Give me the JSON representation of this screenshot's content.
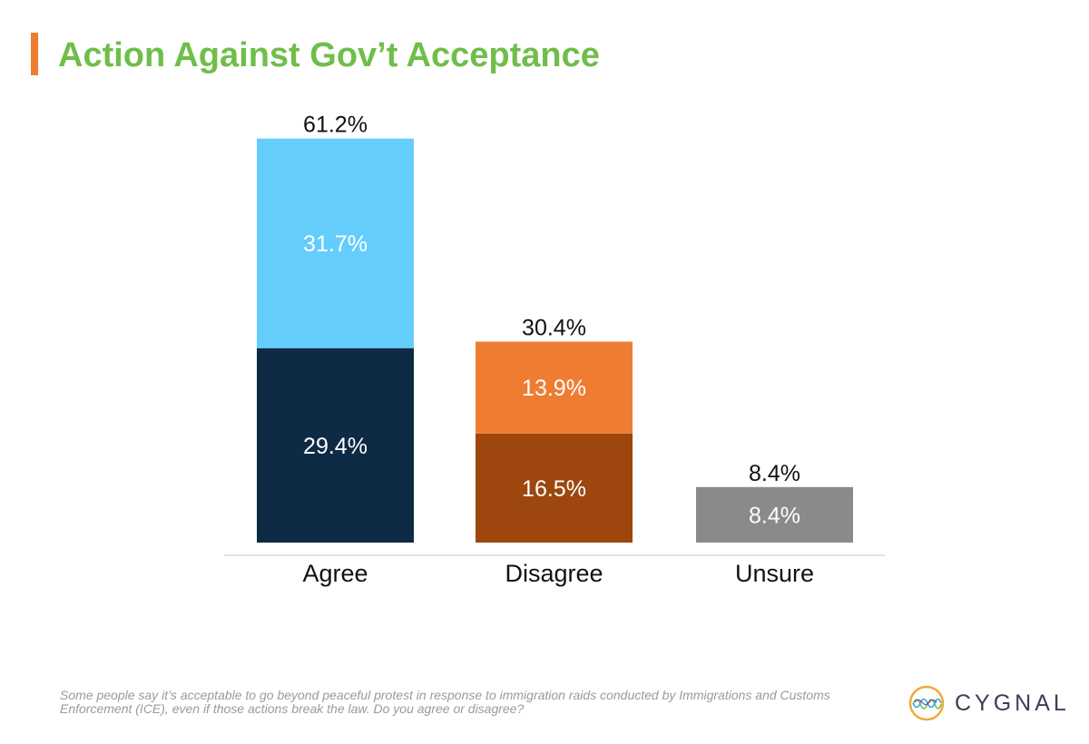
{
  "header": {
    "title": "Action Against Gov’t Acceptance"
  },
  "chart_data": {
    "type": "bar",
    "stacked": true,
    "title": "Action Against Gov’t Acceptance",
    "xlabel": "",
    "ylabel": "",
    "ylim": [
      0,
      65
    ],
    "grid": false,
    "legend": "none",
    "categories": [
      "Agree",
      "Disagree",
      "Unsure"
    ],
    "totals": [
      "61.2%",
      "30.4%",
      "8.4%"
    ],
    "total_values": [
      61.2,
      30.4,
      8.4
    ],
    "bars": [
      {
        "category": "Agree",
        "segments": [
          {
            "value": 29.4,
            "label": "29.4%",
            "color": "#0e2a44"
          },
          {
            "value": 31.7,
            "label": "31.7%",
            "color": "#65cdfc"
          }
        ]
      },
      {
        "category": "Disagree",
        "segments": [
          {
            "value": 16.5,
            "label": "16.5%",
            "color": "#9d470f"
          },
          {
            "value": 13.9,
            "label": "13.9%",
            "color": "#ee7d31"
          }
        ]
      },
      {
        "category": "Unsure",
        "segments": [
          {
            "value": 8.4,
            "label": "8.4%",
            "color": "#8a8a8a"
          }
        ]
      }
    ]
  },
  "footnote": {
    "text": "Some people say it’s acceptable to go beyond peaceful protest in response to immigration raids conducted by Immigrations and Customs Enforcement (ICE), even if those actions break the law. Do you agree or disagree?"
  },
  "logo": {
    "name": "CYGNAL",
    "icon": "cygnal-wave-logo-icon"
  },
  "colors": {
    "title": "#6fbe4a",
    "accent_bar": "#ee7d31",
    "axis": "#d9d9d9"
  }
}
